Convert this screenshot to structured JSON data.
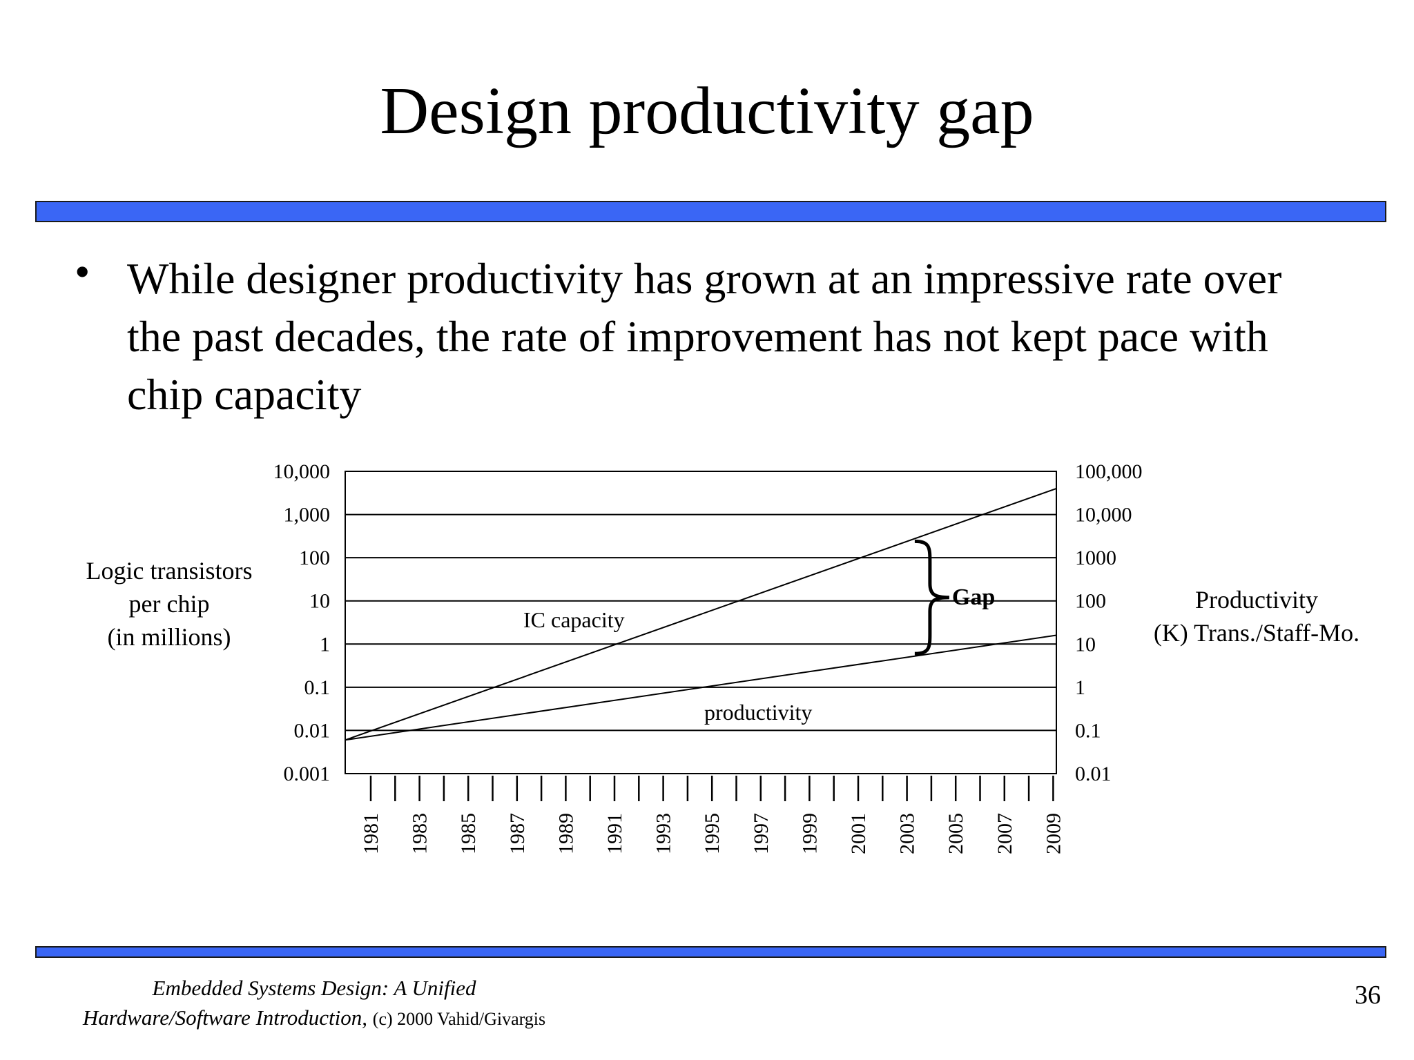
{
  "slide": {
    "title": "Design productivity gap",
    "bullet_symbol": "•",
    "bullet_text": "While designer productivity has grown at an impressive rate over the past decades, the rate of improvement has not kept pace with chip capacity",
    "page_number": "36",
    "footer": {
      "line1": "Embedded Systems Design: A Unified",
      "line2_italic": "Hardware/Software Introduction,",
      "line2_plain": "(c) 2000 Vahid/Givargis"
    },
    "colors": {
      "rule": "#3a66f5",
      "rule_border": "#1a1a1a",
      "text": "#000000"
    }
  },
  "chart_data": {
    "type": "line",
    "y_scale": "log",
    "x_ticks": [
      1981,
      1983,
      1985,
      1987,
      1989,
      1991,
      1993,
      1995,
      1997,
      1999,
      2001,
      2003,
      2005,
      2007,
      2009
    ],
    "xlim": [
      1981,
      2010
    ],
    "ylabel_left": [
      "Logic transistors",
      "per chip",
      "(in millions)"
    ],
    "ylabel_right": [
      "Productivity",
      "(K) Trans./Staff-Mo."
    ],
    "left_ticks": [
      {
        "label": "10,000",
        "value": 10000
      },
      {
        "label": "1,000",
        "value": 1000
      },
      {
        "label": "100",
        "value": 100
      },
      {
        "label": "10",
        "value": 10
      },
      {
        "label": "1",
        "value": 1
      },
      {
        "label": "0.1",
        "value": 0.1
      },
      {
        "label": "0.01",
        "value": 0.01
      },
      {
        "label": "0.001",
        "value": 0.001
      }
    ],
    "right_ticks": [
      {
        "label": "100,000",
        "value": 100000
      },
      {
        "label": "10,000",
        "value": 10000
      },
      {
        "label": "1000",
        "value": 1000
      },
      {
        "label": "100",
        "value": 100
      },
      {
        "label": "10",
        "value": 10
      },
      {
        "label": "1",
        "value": 1
      },
      {
        "label": "0.1",
        "value": 0.1
      },
      {
        "label": "0.01",
        "value": 0.01
      }
    ],
    "ylim_left": [
      0.001,
      10000
    ],
    "grid": true,
    "series": [
      {
        "name": "IC capacity",
        "x": [
          1981,
          2010
        ],
        "y": [
          0.006,
          4000
        ]
      },
      {
        "name": "productivity",
        "x": [
          1981,
          2010
        ],
        "y": [
          0.006,
          1.6
        ]
      }
    ],
    "annotations": [
      {
        "text": "Gap",
        "x": 2004,
        "y_top": 240,
        "y_bottom": 0.6
      }
    ]
  }
}
